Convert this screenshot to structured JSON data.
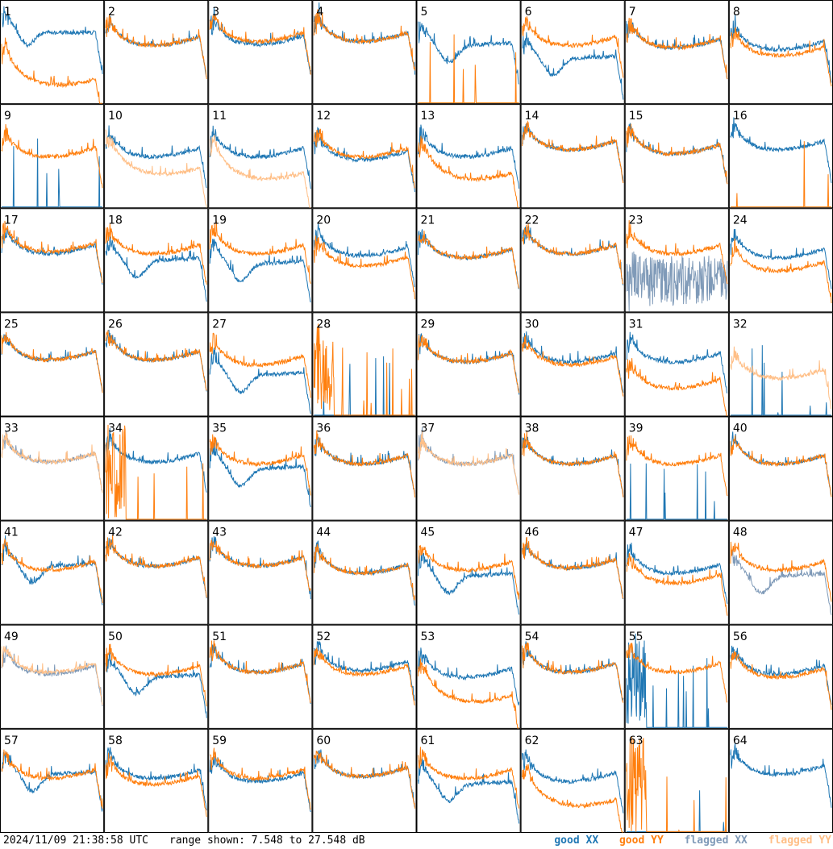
{
  "footer": {
    "timestamp": "2024/11/09 21:38:58 UTC",
    "range": "range shown: 7.548 to 27.548 dB"
  },
  "legend": [
    {
      "label": "good XX",
      "color": "#1f77b4"
    },
    {
      "label": "good YY",
      "color": "#ff7f0e"
    },
    {
      "label": "flagged XX",
      "color": "#7f9ab8"
    },
    {
      "label": "flagged YY",
      "color": "#ffbf87"
    }
  ],
  "colors": {
    "goodXX": "#1f77b4",
    "goodYY": "#ff7f0e",
    "flaggedXX": "#7f9ab8",
    "flaggedYY": "#ffbf87",
    "grid": "#000000"
  },
  "chart_data": {
    "type": "line",
    "ylim": [
      7.548,
      27.548
    ],
    "grid_rows": 8,
    "grid_cols": 8,
    "panels": [
      {
        "label": "1",
        "xx": "good",
        "yy": "good",
        "xx_level": 0.7,
        "yy_level": 0.3,
        "xx_shape": "notch",
        "yy_shape": "sag"
      },
      {
        "label": "2",
        "xx": "good",
        "yy": "good",
        "xx_level": 0.62,
        "yy_level": 0.62,
        "xx_shape": "bowl",
        "yy_shape": "bowl"
      },
      {
        "label": "3",
        "xx": "good",
        "yy": "good",
        "xx_level": 0.63,
        "yy_level": 0.66,
        "xx_shape": "bowl",
        "yy_shape": "bowl"
      },
      {
        "label": "4",
        "xx": "good",
        "yy": "good",
        "xx_level": 0.66,
        "yy_level": 0.66,
        "xx_shape": "bowl",
        "yy_shape": "bowl"
      },
      {
        "label": "5",
        "xx": "good",
        "yy": "spikes",
        "xx_level": 0.55,
        "yy_level": 0.0,
        "xx_shape": "dip",
        "yy_shape": "flat"
      },
      {
        "label": "6",
        "xx": "good",
        "yy": "good",
        "xx_level": 0.42,
        "yy_level": 0.62,
        "xx_shape": "dip",
        "yy_shape": "bowl"
      },
      {
        "label": "7",
        "xx": "good",
        "yy": "good",
        "xx_level": 0.6,
        "yy_level": 0.6,
        "xx_shape": "bowl",
        "yy_shape": "bowl"
      },
      {
        "label": "8",
        "xx": "good",
        "yy": "good",
        "xx_level": 0.58,
        "yy_level": 0.52,
        "xx_shape": "bowl",
        "yy_shape": "bowl"
      },
      {
        "label": "9",
        "xx": "spikes",
        "yy": "good",
        "xx_level": 0.0,
        "yy_level": 0.55,
        "xx_shape": "flat",
        "yy_shape": "bowl"
      },
      {
        "label": "10",
        "xx": "good",
        "yy": "flagged",
        "xx_level": 0.55,
        "yy_level": 0.45,
        "xx_shape": "bowl",
        "yy_shape": "sag"
      },
      {
        "label": "11",
        "xx": "good",
        "yy": "flagged",
        "xx_level": 0.55,
        "yy_level": 0.4,
        "xx_shape": "bowl",
        "yy_shape": "sag"
      },
      {
        "label": "12",
        "xx": "good",
        "yy": "good",
        "xx_level": 0.52,
        "yy_level": 0.55,
        "xx_shape": "bowl",
        "yy_shape": "bowl"
      },
      {
        "label": "13",
        "xx": "good",
        "yy": "good",
        "xx_level": 0.55,
        "yy_level": 0.4,
        "xx_shape": "bowl",
        "yy_shape": "sag"
      },
      {
        "label": "14",
        "xx": "good",
        "yy": "good",
        "xx_level": 0.62,
        "yy_level": 0.62,
        "xx_shape": "bowl",
        "yy_shape": "bowl"
      },
      {
        "label": "15",
        "xx": "good",
        "yy": "good",
        "xx_level": 0.58,
        "yy_level": 0.58,
        "xx_shape": "bowl",
        "yy_shape": "bowl"
      },
      {
        "label": "16",
        "xx": "good",
        "yy": "spikes",
        "xx_level": 0.62,
        "yy_level": 0.0,
        "xx_shape": "bowl",
        "yy_shape": "flat"
      },
      {
        "label": "17",
        "xx": "good",
        "yy": "good",
        "xx_level": 0.62,
        "yy_level": 0.64,
        "xx_shape": "bowl",
        "yy_shape": "bowl"
      },
      {
        "label": "18",
        "xx": "good",
        "yy": "good",
        "xx_level": 0.48,
        "yy_level": 0.62,
        "xx_shape": "dip",
        "yy_shape": "bowl"
      },
      {
        "label": "19",
        "xx": "good",
        "yy": "good",
        "xx_level": 0.45,
        "yy_level": 0.62,
        "xx_shape": "dip",
        "yy_shape": "bowl"
      },
      {
        "label": "20",
        "xx": "good",
        "yy": "good",
        "xx_level": 0.6,
        "yy_level": 0.5,
        "xx_shape": "bowl",
        "yy_shape": "bowl"
      },
      {
        "label": "21",
        "xx": "good",
        "yy": "good",
        "xx_level": 0.58,
        "yy_level": 0.58,
        "xx_shape": "bowl",
        "yy_shape": "bowl"
      },
      {
        "label": "22",
        "xx": "good",
        "yy": "good",
        "xx_level": 0.62,
        "yy_level": 0.62,
        "xx_shape": "bowl",
        "yy_shape": "bowl"
      },
      {
        "label": "23",
        "xx": "flagged",
        "yy": "good",
        "xx_level": 0.3,
        "yy_level": 0.62,
        "xx_shape": "noise",
        "yy_shape": "bowl"
      },
      {
        "label": "24",
        "xx": "good",
        "yy": "good",
        "xx_level": 0.58,
        "yy_level": 0.45,
        "xx_shape": "bowl",
        "yy_shape": "bowl"
      },
      {
        "label": "25",
        "xx": "good",
        "yy": "good",
        "xx_level": 0.6,
        "yy_level": 0.6,
        "xx_shape": "bowl",
        "yy_shape": "bowl"
      },
      {
        "label": "26",
        "xx": "good",
        "yy": "good",
        "xx_level": 0.6,
        "yy_level": 0.6,
        "xx_shape": "bowl",
        "yy_shape": "bowl"
      },
      {
        "label": "27",
        "xx": "good",
        "yy": "good",
        "xx_level": 0.38,
        "yy_level": 0.55,
        "xx_shape": "dip",
        "yy_shape": "bowl"
      },
      {
        "label": "28",
        "xx": "spikes",
        "yy": "spikes",
        "xx_level": 0.0,
        "yy_level": 0.0,
        "xx_shape": "flat",
        "yy_shape": "burst"
      },
      {
        "label": "29",
        "xx": "good",
        "yy": "good",
        "xx_level": 0.58,
        "yy_level": 0.58,
        "xx_shape": "bowl",
        "yy_shape": "bowl"
      },
      {
        "label": "30",
        "xx": "good",
        "yy": "good",
        "xx_level": 0.58,
        "yy_level": 0.55,
        "xx_shape": "bowl",
        "yy_shape": "bowl"
      },
      {
        "label": "31",
        "xx": "good",
        "yy": "good",
        "xx_level": 0.58,
        "yy_level": 0.32,
        "xx_shape": "bowl",
        "yy_shape": "bowl"
      },
      {
        "label": "32",
        "xx": "spikes",
        "yy": "flagged",
        "xx_level": 0.0,
        "yy_level": 0.42,
        "xx_shape": "flat",
        "yy_shape": "bowl"
      },
      {
        "label": "33",
        "xx": "flagged",
        "yy": "flagged",
        "xx_level": 0.62,
        "yy_level": 0.62,
        "xx_shape": "bowl",
        "yy_shape": "bowl"
      },
      {
        "label": "34",
        "xx": "good",
        "yy": "spikes",
        "xx_level": 0.62,
        "yy_level": 0.0,
        "xx_shape": "bowl",
        "yy_shape": "burst"
      },
      {
        "label": "35",
        "xx": "good",
        "yy": "good",
        "xx_level": 0.48,
        "yy_level": 0.6,
        "xx_shape": "dip",
        "yy_shape": "bowl"
      },
      {
        "label": "36",
        "xx": "good",
        "yy": "good",
        "xx_level": 0.6,
        "yy_level": 0.6,
        "xx_shape": "bowl",
        "yy_shape": "bowl"
      },
      {
        "label": "37",
        "xx": "flagged",
        "yy": "flagged",
        "xx_level": 0.6,
        "yy_level": 0.6,
        "xx_shape": "bowl",
        "yy_shape": "bowl"
      },
      {
        "label": "38",
        "xx": "good",
        "yy": "good",
        "xx_level": 0.6,
        "yy_level": 0.6,
        "xx_shape": "bowl",
        "yy_shape": "bowl"
      },
      {
        "label": "39",
        "xx": "spikes",
        "yy": "good",
        "xx_level": 0.0,
        "yy_level": 0.6,
        "xx_shape": "flat",
        "yy_shape": "bowl"
      },
      {
        "label": "40",
        "xx": "good",
        "yy": "good",
        "xx_level": 0.6,
        "yy_level": 0.6,
        "xx_shape": "bowl",
        "yy_shape": "bowl"
      },
      {
        "label": "41",
        "xx": "good",
        "yy": "good",
        "xx_level": 0.55,
        "yy_level": 0.58,
        "xx_shape": "dip",
        "yy_shape": "bowl"
      },
      {
        "label": "42",
        "xx": "good",
        "yy": "good",
        "xx_level": 0.62,
        "yy_level": 0.62,
        "xx_shape": "bowl",
        "yy_shape": "bowl"
      },
      {
        "label": "43",
        "xx": "good",
        "yy": "good",
        "xx_level": 0.62,
        "yy_level": 0.62,
        "xx_shape": "bowl",
        "yy_shape": "bowl"
      },
      {
        "label": "44",
        "xx": "good",
        "yy": "good",
        "xx_level": 0.55,
        "yy_level": 0.55,
        "xx_shape": "bowl",
        "yy_shape": "bowl"
      },
      {
        "label": "45",
        "xx": "good",
        "yy": "good",
        "xx_level": 0.45,
        "yy_level": 0.58,
        "xx_shape": "dip",
        "yy_shape": "bowl"
      },
      {
        "label": "46",
        "xx": "good",
        "yy": "good",
        "xx_level": 0.6,
        "yy_level": 0.6,
        "xx_shape": "bowl",
        "yy_shape": "bowl"
      },
      {
        "label": "47",
        "xx": "good",
        "yy": "good",
        "xx_level": 0.55,
        "yy_level": 0.45,
        "xx_shape": "bowl",
        "yy_shape": "bowl"
      },
      {
        "label": "48",
        "xx": "flagged",
        "yy": "good",
        "xx_level": 0.45,
        "yy_level": 0.58,
        "xx_shape": "dip",
        "yy_shape": "bowl"
      },
      {
        "label": "49",
        "xx": "flagged",
        "yy": "flagged",
        "xx_level": 0.58,
        "yy_level": 0.6,
        "xx_shape": "bowl",
        "yy_shape": "bowl"
      },
      {
        "label": "50",
        "xx": "good",
        "yy": "good",
        "xx_level": 0.48,
        "yy_level": 0.58,
        "xx_shape": "dip",
        "yy_shape": "bowl"
      },
      {
        "label": "51",
        "xx": "good",
        "yy": "good",
        "xx_level": 0.6,
        "yy_level": 0.6,
        "xx_shape": "bowl",
        "yy_shape": "bowl"
      },
      {
        "label": "52",
        "xx": "good",
        "yy": "good",
        "xx_level": 0.62,
        "yy_level": 0.58,
        "xx_shape": "bowl",
        "yy_shape": "bowl"
      },
      {
        "label": "53",
        "xx": "good",
        "yy": "good",
        "xx_level": 0.55,
        "yy_level": 0.38,
        "xx_shape": "bowl",
        "yy_shape": "sag"
      },
      {
        "label": "54",
        "xx": "good",
        "yy": "good",
        "xx_level": 0.6,
        "yy_level": 0.6,
        "xx_shape": "bowl",
        "yy_shape": "bowl"
      },
      {
        "label": "55",
        "xx": "spikes",
        "yy": "good",
        "xx_level": 0.0,
        "yy_level": 0.6,
        "xx_shape": "burst",
        "yy_shape": "bowl"
      },
      {
        "label": "56",
        "xx": "good",
        "yy": "good",
        "xx_level": 0.58,
        "yy_level": 0.55,
        "xx_shape": "bowl",
        "yy_shape": "bowl"
      },
      {
        "label": "57",
        "xx": "good",
        "yy": "good",
        "xx_level": 0.55,
        "yy_level": 0.58,
        "xx_shape": "dip",
        "yy_shape": "bowl"
      },
      {
        "label": "58",
        "xx": "good",
        "yy": "good",
        "xx_level": 0.58,
        "yy_level": 0.52,
        "xx_shape": "bowl",
        "yy_shape": "bowl"
      },
      {
        "label": "59",
        "xx": "good",
        "yy": "good",
        "xx_level": 0.55,
        "yy_level": 0.58,
        "xx_shape": "bowl",
        "yy_shape": "bowl"
      },
      {
        "label": "60",
        "xx": "good",
        "yy": "good",
        "xx_level": 0.6,
        "yy_level": 0.6,
        "xx_shape": "bowl",
        "yy_shape": "bowl"
      },
      {
        "label": "61",
        "xx": "good",
        "yy": "good",
        "xx_level": 0.45,
        "yy_level": 0.58,
        "xx_shape": "dip",
        "yy_shape": "bowl"
      },
      {
        "label": "62",
        "xx": "good",
        "yy": "good",
        "xx_level": 0.55,
        "yy_level": 0.38,
        "xx_shape": "bowl",
        "yy_shape": "sag"
      },
      {
        "label": "63",
        "xx": "spikes",
        "yy": "spikes",
        "xx_level": 0.0,
        "yy_level": 0.0,
        "xx_shape": "flat",
        "yy_shape": "burst"
      },
      {
        "label": "64",
        "xx": "good",
        "yy": "none",
        "xx_level": 0.62,
        "yy_level": 0.0,
        "xx_shape": "bowl",
        "yy_shape": "flat"
      }
    ]
  }
}
